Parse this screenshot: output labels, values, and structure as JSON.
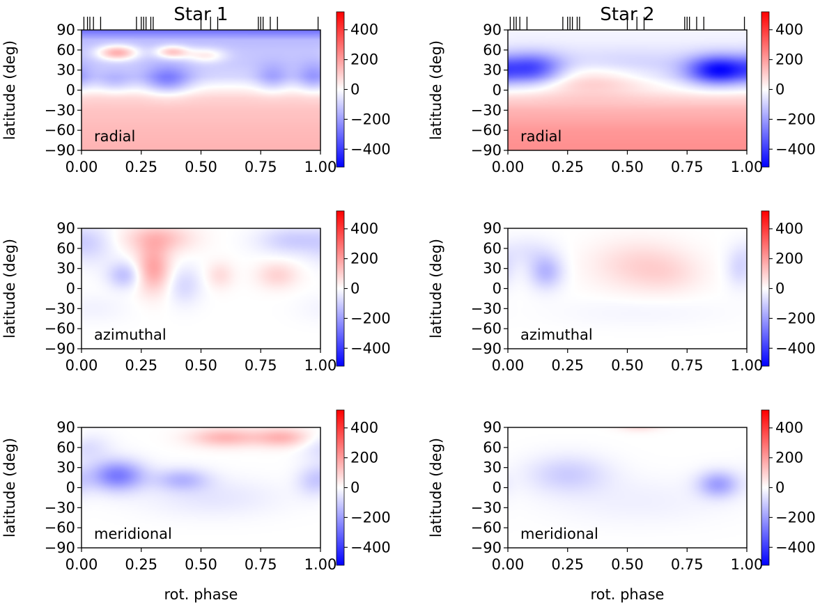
{
  "colorbar": {
    "min": -520,
    "max": 520,
    "ticks": [
      400,
      200,
      0,
      -200,
      -400
    ],
    "tick_labels": [
      "400",
      "200",
      "0",
      "−200",
      "−400"
    ],
    "colors": {
      "low": "#0000ff",
      "mid": "#ffffff",
      "high": "#ff0000"
    }
  },
  "chart_data": [
    {
      "type": "heatmap",
      "row": 0,
      "col": 0,
      "title": "Star 1",
      "label": "radial",
      "xlabel": "",
      "ylabel": "latitude (deg)",
      "xlim": [
        0,
        1
      ],
      "ylim": [
        -90,
        90
      ],
      "x_ticks": [
        "0.00",
        "0.25",
        "0.50",
        "0.75",
        "1.00"
      ],
      "y_ticks": [
        "90",
        "60",
        "30",
        "0",
        "−30",
        "−60",
        "−90"
      ],
      "observation_phases": [
        0.01,
        0.025,
        0.035,
        0.05,
        0.08,
        0.23,
        0.25,
        0.26,
        0.27,
        0.29,
        0.3,
        0.5,
        0.54,
        0.57,
        0.74,
        0.75,
        0.76,
        0.79,
        0.82,
        0.99
      ],
      "field": {
        "base": [
          [
            -90,
            155
          ],
          [
            -60,
            140
          ],
          [
            -30,
            120
          ],
          [
            -12,
            90
          ],
          [
            0,
            30
          ],
          [
            20,
            -80
          ],
          [
            40,
            -110
          ],
          [
            60,
            -120
          ],
          [
            75,
            -140
          ],
          [
            90,
            -300
          ]
        ],
        "features": [
          {
            "phase": 0.36,
            "lat": 15,
            "dphase": 0.07,
            "dlat": 15,
            "value": -200
          },
          {
            "phase": 0.14,
            "lat": 12,
            "dphase": 0.06,
            "dlat": 12,
            "value": -90
          },
          {
            "phase": 0.8,
            "lat": 18,
            "dphase": 0.05,
            "dlat": 15,
            "value": -110
          },
          {
            "phase": 0.97,
            "lat": 18,
            "dphase": 0.05,
            "dlat": 15,
            "value": -130
          },
          {
            "phase": 0.15,
            "lat": 56,
            "dphase": 0.06,
            "dlat": 8,
            "value": 280
          },
          {
            "phase": 0.38,
            "lat": 57,
            "dphase": 0.05,
            "dlat": 7,
            "value": 230
          },
          {
            "phase": 0.52,
            "lat": 52,
            "dphase": 0.06,
            "dlat": 8,
            "value": 150
          }
        ]
      }
    },
    {
      "type": "heatmap",
      "row": 0,
      "col": 1,
      "title": "Star 2",
      "label": "radial",
      "xlabel": "",
      "ylabel": "latitude (deg)",
      "xlim": [
        0,
        1
      ],
      "ylim": [
        -90,
        90
      ],
      "x_ticks": [
        "0.00",
        "0.25",
        "0.50",
        "0.75",
        "1.00"
      ],
      "y_ticks": [
        "90",
        "60",
        "30",
        "0",
        "−30",
        "−60",
        "−90"
      ],
      "observation_phases": [
        0.01,
        0.025,
        0.035,
        0.05,
        0.08,
        0.23,
        0.25,
        0.26,
        0.27,
        0.29,
        0.3,
        0.5,
        0.54,
        0.57,
        0.74,
        0.75,
        0.76,
        0.79,
        0.82,
        0.99
      ],
      "field": {
        "base": [
          [
            -90,
            230
          ],
          [
            -60,
            210
          ],
          [
            -30,
            150
          ],
          [
            -12,
            80
          ],
          [
            0,
            10
          ],
          [
            20,
            -60
          ],
          [
            40,
            -60
          ],
          [
            60,
            -40
          ],
          [
            75,
            -25
          ],
          [
            90,
            -20
          ]
        ],
        "features": [
          {
            "phase": 0.35,
            "lat": 15,
            "dphase": 0.17,
            "dlat": 16,
            "value": 130
          },
          {
            "phase": 0.1,
            "lat": 32,
            "dphase": 0.09,
            "dlat": 16,
            "value": -320
          },
          {
            "phase": 0.88,
            "lat": 30,
            "dphase": 0.09,
            "dlat": 15,
            "value": -430
          },
          {
            "phase": 0.5,
            "lat": 40,
            "dphase": 0.2,
            "dlat": 15,
            "value": -40
          }
        ]
      }
    },
    {
      "type": "heatmap",
      "row": 1,
      "col": 0,
      "title": "",
      "label": "azimuthal",
      "xlabel": "",
      "ylabel": "latitude (deg)",
      "xlim": [
        0,
        1
      ],
      "ylim": [
        -90,
        90
      ],
      "x_ticks": [
        "0.00",
        "0.25",
        "0.50",
        "0.75",
        "1.00"
      ],
      "y_ticks": [
        "90",
        "60",
        "30",
        "0",
        "−30",
        "−60",
        "−90"
      ],
      "field": {
        "base": [
          [
            -90,
            0
          ],
          [
            90,
            0
          ]
        ],
        "features": [
          {
            "phase": 0.04,
            "lat": 65,
            "dphase": 0.07,
            "dlat": 22,
            "value": -70
          },
          {
            "phase": 0.18,
            "lat": 20,
            "dphase": 0.05,
            "dlat": 14,
            "value": -130
          },
          {
            "phase": 0.3,
            "lat": 30,
            "dphase": 0.05,
            "dlat": 25,
            "value": 190
          },
          {
            "phase": 0.32,
            "lat": 75,
            "dphase": 0.1,
            "dlat": 15,
            "value": 130
          },
          {
            "phase": 0.43,
            "lat": 5,
            "dphase": 0.05,
            "dlat": 20,
            "value": -80
          },
          {
            "phase": 0.58,
            "lat": 20,
            "dphase": 0.04,
            "dlat": 14,
            "value": 70
          },
          {
            "phase": 0.82,
            "lat": 20,
            "dphase": 0.06,
            "dlat": 14,
            "value": 90
          },
          {
            "phase": 0.88,
            "lat": 72,
            "dphase": 0.1,
            "dlat": 15,
            "value": -100
          },
          {
            "phase": 0.05,
            "lat": -30,
            "dphase": 0.1,
            "dlat": 15,
            "value": -25
          }
        ]
      }
    },
    {
      "type": "heatmap",
      "row": 1,
      "col": 1,
      "title": "",
      "label": "azimuthal",
      "xlabel": "",
      "ylabel": "latitude (deg)",
      "xlim": [
        0,
        1
      ],
      "ylim": [
        -90,
        90
      ],
      "x_ticks": [
        "0.00",
        "0.25",
        "0.50",
        "0.75",
        "1.00"
      ],
      "y_ticks": [
        "90",
        "60",
        "30",
        "0",
        "−30",
        "−60",
        "−90"
      ],
      "field": {
        "base": [
          [
            -90,
            0
          ],
          [
            90,
            0
          ]
        ],
        "features": [
          {
            "phase": 0.16,
            "lat": 25,
            "dphase": 0.05,
            "dlat": 18,
            "value": -150
          },
          {
            "phase": 0.08,
            "lat": 55,
            "dphase": 0.08,
            "dlat": 16,
            "value": -50
          },
          {
            "phase": 0.55,
            "lat": 35,
            "dphase": 0.14,
            "dlat": 26,
            "value": 85
          },
          {
            "phase": 0.68,
            "lat": 20,
            "dphase": 0.1,
            "dlat": 20,
            "value": 40
          },
          {
            "phase": 0.97,
            "lat": 30,
            "dphase": 0.04,
            "dlat": 20,
            "value": -80
          },
          {
            "phase": 0.55,
            "lat": -35,
            "dphase": 0.25,
            "dlat": 15,
            "value": -20
          }
        ]
      }
    },
    {
      "type": "heatmap",
      "row": 2,
      "col": 0,
      "title": "",
      "label": "meridional",
      "xlabel": "rot. phase",
      "ylabel": "latitude (deg)",
      "xlim": [
        0,
        1
      ],
      "ylim": [
        -90,
        90
      ],
      "x_ticks": [
        "0.00",
        "0.25",
        "0.50",
        "0.75",
        "1.00"
      ],
      "y_ticks": [
        "90",
        "60",
        "30",
        "0",
        "−30",
        "−60",
        "−90"
      ],
      "field": {
        "base": [
          [
            -90,
            0
          ],
          [
            90,
            0
          ]
        ],
        "features": [
          {
            "phase": 0.15,
            "lat": 18,
            "dphase": 0.08,
            "dlat": 16,
            "value": -270
          },
          {
            "phase": 0.42,
            "lat": 12,
            "dphase": 0.08,
            "dlat": 12,
            "value": -140
          },
          {
            "phase": 0.6,
            "lat": 75,
            "dphase": 0.1,
            "dlat": 10,
            "value": 150
          },
          {
            "phase": 0.84,
            "lat": 75,
            "dphase": 0.08,
            "dlat": 10,
            "value": 150
          },
          {
            "phase": 0.55,
            "lat": -15,
            "dphase": 0.2,
            "dlat": 20,
            "value": -50
          },
          {
            "phase": 0.97,
            "lat": 10,
            "dphase": 0.05,
            "dlat": 16,
            "value": -90
          },
          {
            "phase": 0.02,
            "lat": 60,
            "dphase": 0.07,
            "dlat": 15,
            "value": -70
          }
        ]
      }
    },
    {
      "type": "heatmap",
      "row": 2,
      "col": 1,
      "title": "",
      "label": "meridional",
      "xlabel": "rot. phase",
      "ylabel": "latitude (deg)",
      "xlim": [
        0,
        1
      ],
      "ylim": [
        -90,
        90
      ],
      "x_ticks": [
        "0.00",
        "0.25",
        "0.50",
        "0.75",
        "1.00"
      ],
      "y_ticks": [
        "90",
        "60",
        "30",
        "0",
        "−30",
        "−60",
        "−90"
      ],
      "field": {
        "base": [
          [
            -90,
            0
          ],
          [
            90,
            0
          ]
        ],
        "features": [
          {
            "phase": 0.25,
            "lat": 20,
            "dphase": 0.12,
            "dlat": 20,
            "value": -100
          },
          {
            "phase": 0.88,
            "lat": 5,
            "dphase": 0.06,
            "dlat": 14,
            "value": -190
          },
          {
            "phase": 0.55,
            "lat": 90,
            "dphase": 0.06,
            "dlat": 5,
            "value": 60
          },
          {
            "phase": 0.55,
            "lat": -20,
            "dphase": 0.25,
            "dlat": 25,
            "value": -30
          }
        ]
      }
    }
  ]
}
